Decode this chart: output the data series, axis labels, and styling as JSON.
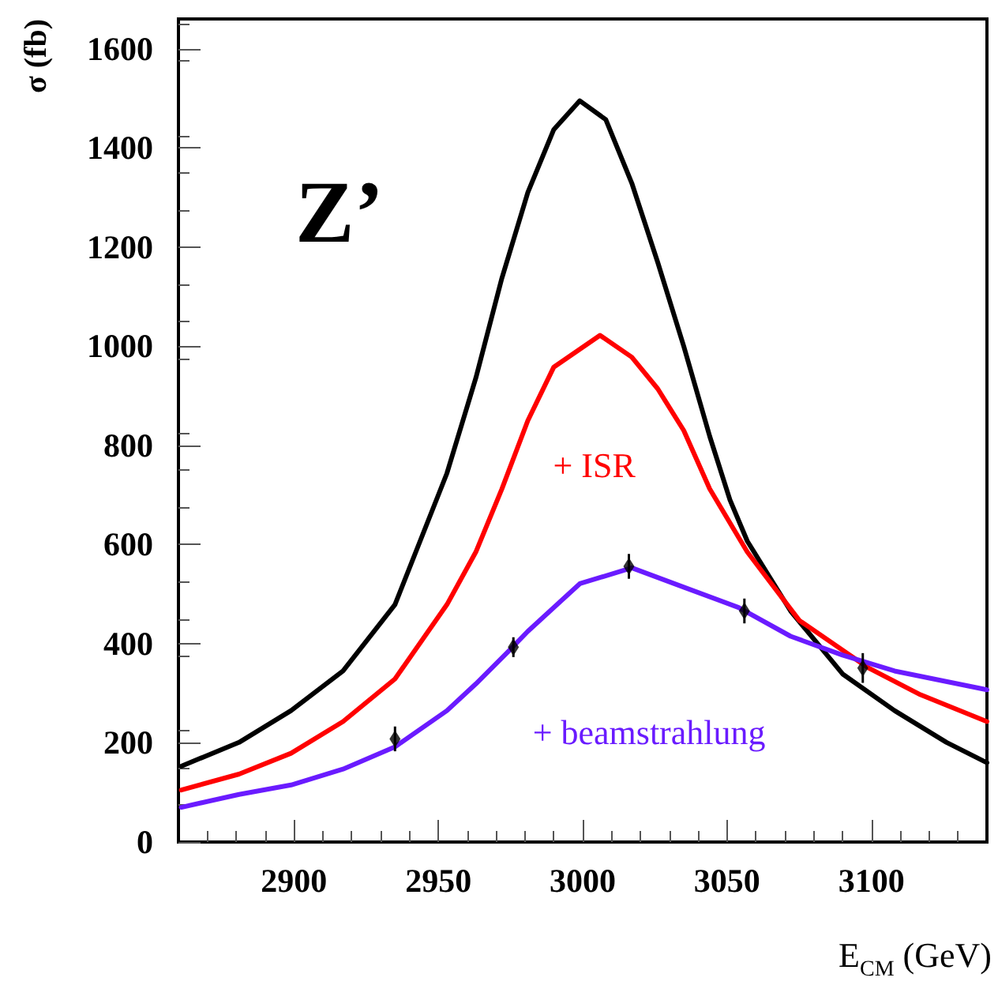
{
  "chart_data": {
    "type": "line",
    "xlabel": "E$_{CM}$ (GeV)",
    "ylabel": "σ (fb)",
    "annotations": [
      "Z’"
    ],
    "xlim": [
      2860,
      3140
    ],
    "xticks": [
      2900,
      2950,
      3000,
      3050,
      3100
    ],
    "ylim": [
      0,
      1660
    ],
    "yticks": [
      0,
      200,
      400,
      600,
      800,
      1000,
      1200,
      1400,
      1600
    ],
    "grid": false,
    "legend": false,
    "marker": "none",
    "line_style": "solid",
    "series": [
      {
        "color": "#000000",
        "x": [
          2861,
          2881,
          2899,
          2917,
          2935,
          2953,
          2963,
          2972,
          2981,
          2990,
          2999,
          3008,
          3017,
          3026,
          3035,
          3044,
          3051,
          3057,
          3072,
          3090,
          3108,
          3126,
          3140
        ],
        "values": [
          153,
          201,
          265,
          345,
          479,
          744,
          936,
          1137,
          1310,
          1437,
          1495,
          1457,
          1329,
          1169,
          1000,
          818,
          690,
          607,
          466,
          339,
          265,
          201,
          160
        ]
      },
      {
        "name": "+ ISR",
        "color": "#ff0000",
        "x": [
          2861,
          2881,
          2899,
          2917,
          2935,
          2953,
          2963,
          2972,
          2981,
          2990,
          3006,
          3017,
          3026,
          3035,
          3044,
          3057,
          3075,
          3099,
          3117,
          3140
        ],
        "values": [
          105,
          137,
          179,
          243,
          329,
          479,
          585,
          712,
          850,
          958,
          1022,
          978,
          914,
          830,
          712,
          585,
          447,
          351,
          297,
          243
        ]
      },
      {
        "name": "+ beamstrahlung",
        "color": "#6a1bff",
        "x": [
          2861,
          2881,
          2899,
          2917,
          2935,
          2953,
          2963,
          2974,
          2981,
          2999,
          3017,
          3035,
          3054,
          3072,
          3090,
          3108,
          3140
        ],
        "values": [
          70,
          96,
          115,
          147,
          192,
          265,
          319,
          383,
          425,
          521,
          553,
          514,
          473,
          415,
          377,
          345,
          307
        ]
      },
      {
        "type": "scatter",
        "color": "#000000",
        "marker": "diamond",
        "x": [
          2935,
          2976,
          3016,
          3056,
          3097
        ],
        "values": [
          208,
          393,
          556,
          466,
          351
        ],
        "errors": [
          25,
          20,
          25,
          25,
          30
        ]
      }
    ]
  }
}
